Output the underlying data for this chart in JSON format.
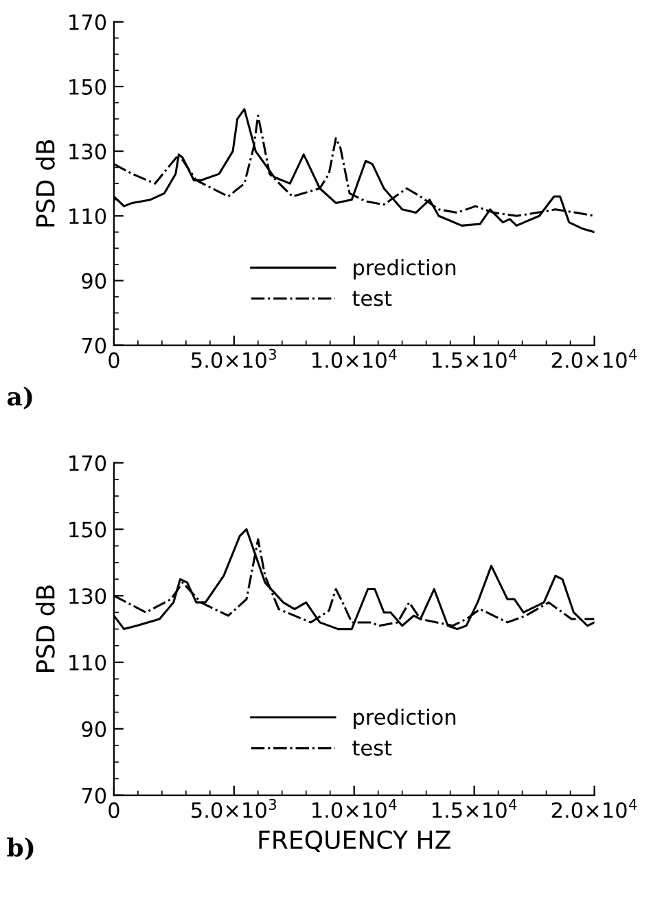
{
  "chart_data": [
    {
      "type": "line",
      "ylabel": "PSD dB",
      "annotations": [
        "a)"
      ],
      "legend": "bottom",
      "grid": false,
      "xlim": [
        0,
        20000
      ],
      "ylim": [
        70,
        170
      ],
      "yticks": [
        70,
        90,
        110,
        130,
        150,
        170
      ],
      "xticks": [
        0,
        {
          "value": 5000,
          "label": "5.0×10$^{3}$"
        },
        {
          "value": 10000,
          "label": "1.0×10$^{4}$"
        },
        {
          "value": 15000,
          "label": "1.5×10$^{4}$"
        },
        {
          "value": 20000,
          "label": "2.0×10$^{4}$"
        }
      ],
      "series": [
        {
          "name": "prediction",
          "color": "#000000",
          "line_style": "solid",
          "x": [
            0,
            420,
            760,
            1520,
            2100,
            2570,
            2700,
            2860,
            3330,
            3620,
            4380,
            4950,
            5140,
            5430,
            5900,
            6670,
            7330,
            7900,
            8570,
            9240,
            9900,
            10480,
            10760,
            11240,
            12000,
            12570,
            13140,
            13520,
            14480,
            15240,
            15660,
            16190,
            16480,
            16760,
            17710,
            18320,
            18570,
            18950,
            19520,
            20000
          ],
          "values": [
            116,
            113,
            114,
            115,
            117,
            123,
            129,
            128,
            121,
            121,
            123,
            130,
            140,
            143,
            130,
            122,
            120,
            129,
            118.5,
            114,
            115,
            127,
            126,
            118.5,
            112,
            111,
            115,
            110,
            107,
            107.5,
            112,
            108,
            109,
            107,
            110,
            116,
            116,
            108,
            106,
            105
          ]
        },
        {
          "name": "test",
          "color": "#000000",
          "line_style": "dashdot",
          "x": [
            0,
            760,
            1710,
            2700,
            3430,
            4760,
            5430,
            5810,
            6000,
            6190,
            6480,
            7430,
            8570,
            8950,
            9240,
            9430,
            9810,
            10480,
            11240,
            12190,
            12760,
            13520,
            14290,
            15050,
            15810,
            16760,
            17620,
            18380,
            19240,
            20000
          ],
          "values": [
            126,
            123,
            120,
            129,
            121,
            116,
            120,
            131,
            141,
            134,
            123,
            116,
            118.5,
            123,
            134,
            131,
            117,
            114.5,
            113.5,
            118.5,
            116,
            112,
            111,
            113,
            111,
            110,
            111,
            112,
            111,
            110
          ]
        }
      ]
    },
    {
      "type": "line",
      "ylabel": "PSD dB",
      "xlabel": "FREQUENCY HZ",
      "annotations": [
        "b)"
      ],
      "legend": "bottom",
      "grid": false,
      "xlim": [
        0,
        20000
      ],
      "ylim": [
        70,
        170
      ],
      "yticks": [
        70,
        90,
        110,
        130,
        150,
        170
      ],
      "xticks": [
        0,
        {
          "value": 5000,
          "label": "5.0×10$^{3}$"
        },
        {
          "value": 10000,
          "label": "1.0×10$^{4}$"
        },
        {
          "value": 15000,
          "label": "1.5×10$^{4}$"
        },
        {
          "value": 20000,
          "label": "2.0×10$^{4}$"
        }
      ],
      "series": [
        {
          "name": "prediction",
          "color": "#000000",
          "line_style": "solid",
          "x": [
            0,
            420,
            950,
            1900,
            2480,
            2760,
            3050,
            3430,
            3810,
            4570,
            5240,
            5520,
            6290,
            7050,
            7520,
            8000,
            8570,
            9330,
            9900,
            10570,
            10860,
            11240,
            11520,
            12000,
            12480,
            12760,
            13330,
            13900,
            14290,
            14670,
            15140,
            15710,
            16380,
            16670,
            17050,
            17900,
            18380,
            18670,
            19140,
            19710,
            20000
          ],
          "values": [
            124,
            120,
            121,
            123,
            128,
            135,
            134,
            128,
            128,
            136,
            148,
            150,
            134,
            128,
            126,
            128,
            122,
            120,
            120,
            132,
            132,
            125,
            125,
            121,
            124,
            123,
            132,
            121,
            120,
            121,
            128,
            139,
            129,
            129,
            125,
            128,
            136,
            135,
            125,
            121,
            122
          ]
        },
        {
          "name": "test",
          "color": "#000000",
          "line_style": "dashdot",
          "x": [
            0,
            1330,
            2380,
            2860,
            3620,
            4760,
            5520,
            6000,
            6290,
            6860,
            8190,
            8950,
            9240,
            9520,
            9900,
            10670,
            11050,
            11810,
            12290,
            12760,
            14100,
            14670,
            15240,
            16380,
            17140,
            18100,
            19050,
            20000
          ],
          "values": [
            130,
            125,
            129,
            134,
            128,
            124,
            129,
            147,
            136,
            126,
            122,
            125.5,
            132,
            128,
            122,
            122,
            121,
            122,
            128,
            123,
            121,
            123,
            126,
            122,
            124,
            128,
            123,
            123
          ]
        }
      ]
    }
  ]
}
